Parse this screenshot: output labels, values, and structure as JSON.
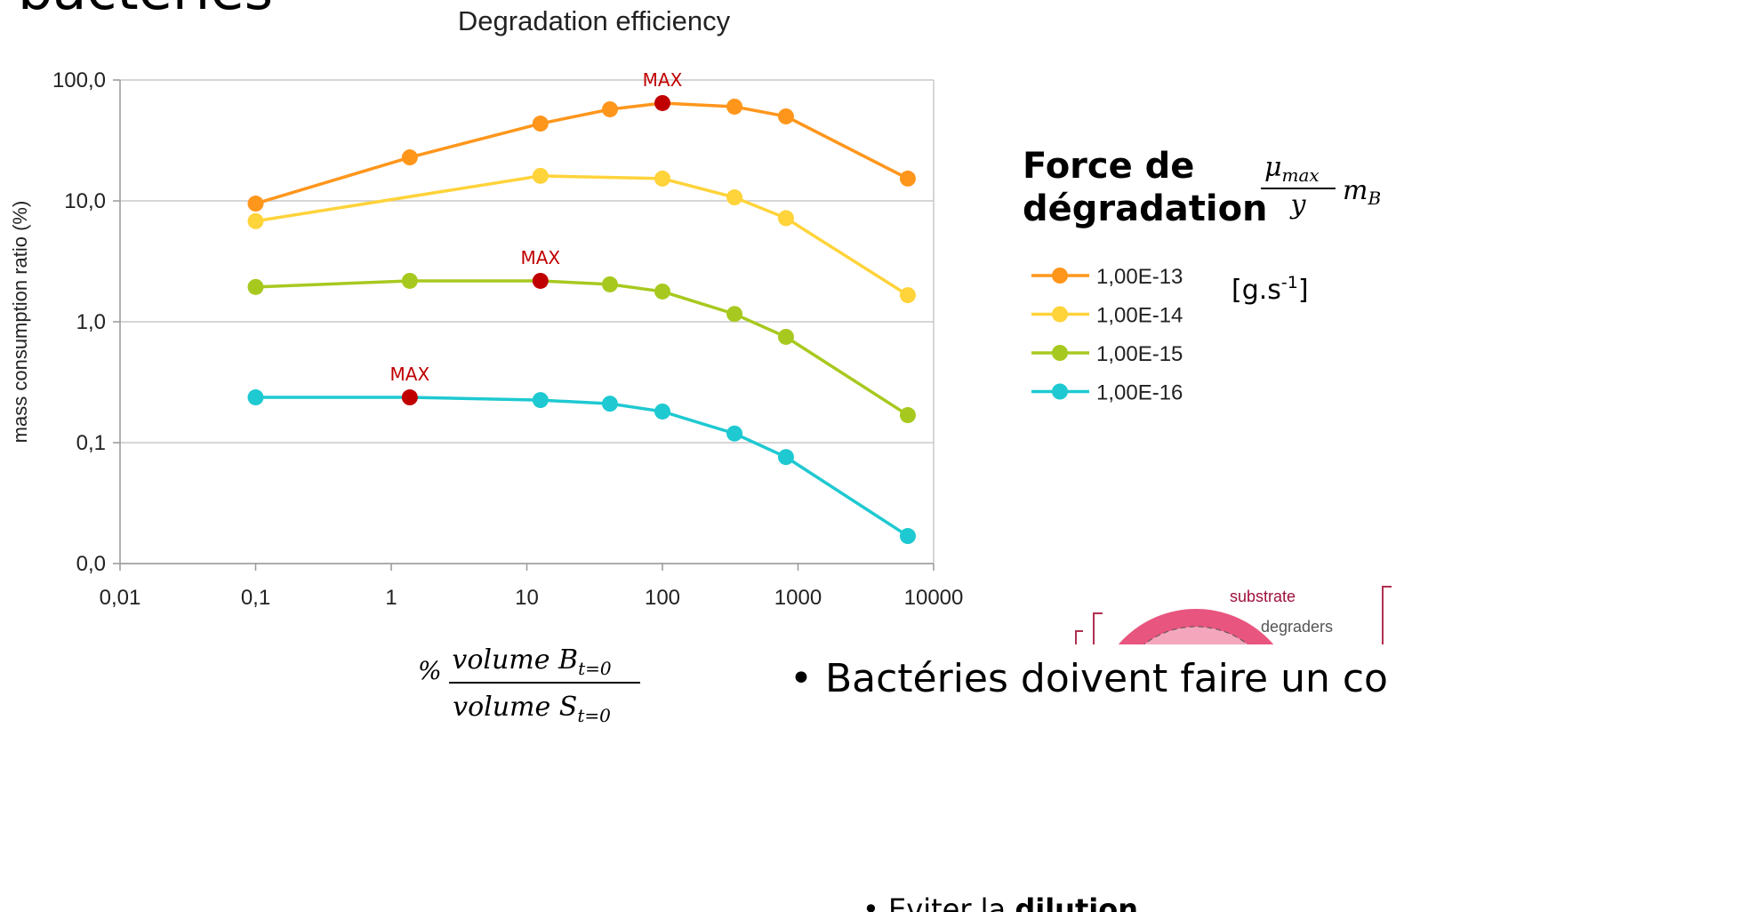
{
  "slide": {
    "heading": "bactéries",
    "legend_title_1": "Force de",
    "legend_title_2": "dégradation",
    "formula_mu": "μ",
    "formula_mu_sub": "max",
    "formula_den": "y",
    "formula_m": "m",
    "formula_m_sub": "B",
    "unit": "[g.s",
    "unit_sup": "-1",
    "unit_end": "]",
    "xlabel_pct": "%",
    "xlabel_num": "volume B",
    "xlabel_num_sub": "t=0",
    "xlabel_den": "volume S",
    "xlabel_den_sub": "t=0",
    "diagram_substrate": "substrate",
    "diagram_degraders": "degraders",
    "bullet_1": "Bactéries doivent faire un co",
    "bullet_2": "Eviter la ",
    "bullet_2_bold": "dilution"
  },
  "chart_data": {
    "type": "line",
    "title": "Degradation efficiency",
    "y_label": "mass consumption ratio (%)",
    "log_x": true,
    "log_y": true,
    "grid": true,
    "legend": "right",
    "highlight_color": "#c00000",
    "x": [
      0.1,
      1.37,
      12.6,
      41,
      100,
      340,
      815,
      6450
    ],
    "xlim": [
      0.01,
      10000
    ],
    "xticks": [
      {
        "value": 0.01,
        "label": "0,01"
      },
      {
        "value": 0.1,
        "label": "0,1"
      },
      1,
      10,
      100,
      1000,
      10000
    ],
    "ylim": [
      0.01,
      100
    ],
    "yticks": [
      {
        "value": 0.01,
        "label": "0,0"
      },
      {
        "value": 0.1,
        "label": "0,1"
      },
      {
        "value": 1,
        "label": "1,0"
      },
      {
        "value": 10,
        "label": "10,0"
      },
      {
        "value": 100,
        "label": "100,0"
      }
    ],
    "series": [
      {
        "name": "1,00E-13",
        "color": "#ff961c",
        "values": [
          9.5,
          22.9,
          43.6,
          57.2,
          64.4,
          60.2,
          50,
          15.3
        ],
        "annotation": {
          "text": "MAX",
          "index": 4
        }
      },
      {
        "name": "1,00E-14",
        "color": "#ffd33a",
        "x": [
          0.1,
          12.6,
          100,
          340,
          815,
          6450
        ],
        "values": [
          6.8,
          16.1,
          15.3,
          10.7,
          7.2,
          1.66
        ]
      },
      {
        "name": "1,00E-15",
        "color": "#a7c91f",
        "values": [
          1.94,
          2.18,
          2.18,
          2.04,
          1.78,
          1.16,
          0.75,
          0.169
        ],
        "annotation": {
          "text": "MAX",
          "index": 2
        }
      },
      {
        "name": "1,00E-16",
        "color": "#1ec9d1",
        "values": [
          0.237,
          0.237,
          0.225,
          0.21,
          0.181,
          0.119,
          0.076,
          0.0169
        ],
        "annotation": {
          "text": "MAX",
          "index": 1
        }
      }
    ]
  }
}
